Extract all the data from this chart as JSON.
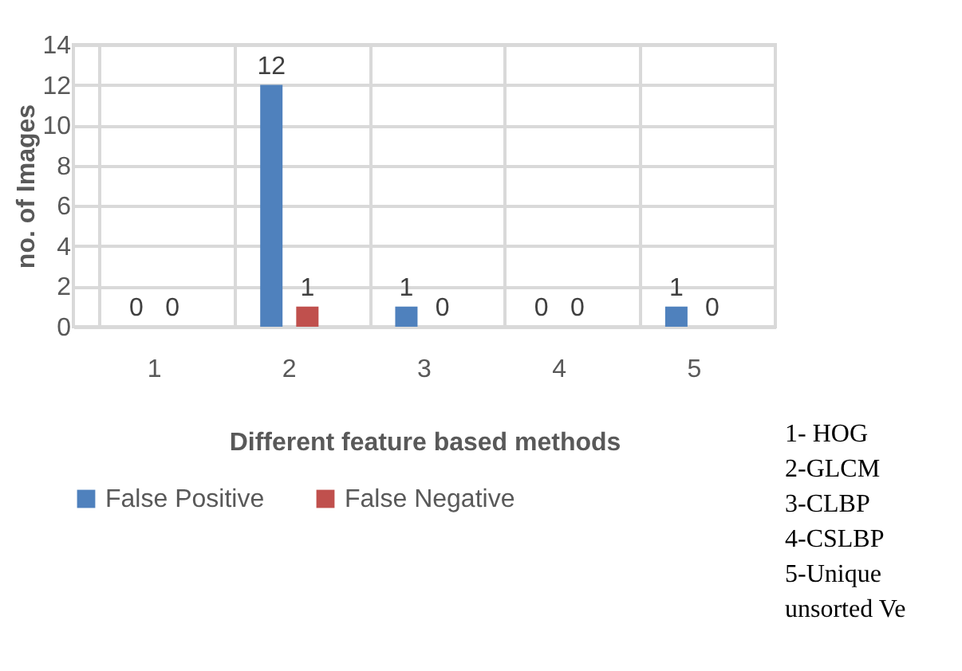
{
  "chart_data": {
    "type": "bar",
    "xlabel": "Different feature based methods",
    "ylabel": "no. of Images",
    "categories": [
      "1",
      "2",
      "3",
      "4",
      "5"
    ],
    "series": [
      {
        "name": "False Positive",
        "color": "#4f81bd",
        "values": [
          0,
          12,
          1,
          0,
          1
        ]
      },
      {
        "name": "False Negative",
        "color": "#c0504d",
        "values": [
          0,
          1,
          0,
          0,
          0
        ]
      }
    ],
    "ylim": [
      0,
      14
    ],
    "yticks": [
      0,
      2,
      4,
      6,
      8,
      10,
      12,
      14
    ],
    "grid": true,
    "legend": "bottom",
    "data_labels": true,
    "annotations": [
      "1- HOG",
      "2-GLCM",
      "3-CLBP",
      "4-CSLBP",
      "5-Unique",
      "unsorted Ve"
    ]
  }
}
